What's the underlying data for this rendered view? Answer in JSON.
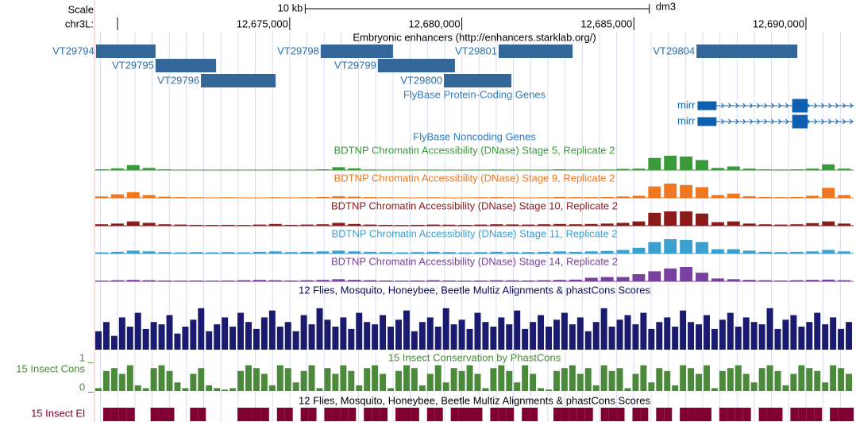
{
  "scale": {
    "label": "Scale",
    "bar_label": "10 kb",
    "assembly": "dm3",
    "start": 12675450,
    "end": 12685450
  },
  "ruler": {
    "chrom": "chr3L:",
    "xlim": [
      12669350,
      12691385
    ],
    "ticks": [
      {
        "value": 12675000,
        "label": "12,675,000"
      },
      {
        "value": 12680000,
        "label": "12,680,000"
      },
      {
        "value": 12685000,
        "label": "12,685,000"
      },
      {
        "value": 12690000,
        "label": "12,690,000"
      }
    ]
  },
  "enhancers": {
    "title": "Embryonic enhancers (http://enhancers.starklab.org/)",
    "color": "#336699",
    "features": [
      {
        "label": "VT29794",
        "start": 12669370,
        "end": 12671100,
        "row": 0
      },
      {
        "label": "VT29795",
        "start": 12671100,
        "end": 12672860,
        "row": 1
      },
      {
        "label": "VT29796",
        "start": 12672420,
        "end": 12674590,
        "row": 2
      },
      {
        "label": "VT29798",
        "start": 12675900,
        "end": 12678000,
        "row": 0
      },
      {
        "label": "VT29799",
        "start": 12677560,
        "end": 12679800,
        "row": 1
      },
      {
        "label": "VT29800",
        "start": 12679480,
        "end": 12681440,
        "row": 2
      },
      {
        "label": "VT29801",
        "start": 12681070,
        "end": 12683220,
        "row": 0
      },
      {
        "label": "VT29804",
        "start": 12686820,
        "end": 12689750,
        "row": 0
      }
    ]
  },
  "genes": {
    "title": "FlyBase Protein-Coding Genes",
    "color": "#0f5fb0",
    "features": [
      {
        "label": "mirr",
        "start": 12686850,
        "end": 12691385,
        "exons": [
          [
            12686850,
            12687400
          ],
          [
            12689600,
            12690050
          ]
        ]
      },
      {
        "label": "mirr",
        "start": 12686850,
        "end": 12691385,
        "exons": [
          [
            12686850,
            12687400
          ],
          [
            12689600,
            12690050
          ]
        ]
      }
    ]
  },
  "noncoding": {
    "title": "FlyBase Noncoding Genes"
  },
  "dnase": [
    {
      "title": "BDTNP Chromatin Accessibility (DNase) Stage 5, Replicate 2",
      "color": "#3a9a3a",
      "values": [
        0.05,
        0.12,
        0.35,
        0.15,
        0.05,
        0.03,
        0.02,
        0.02,
        0.03,
        0.02,
        0.02,
        0.03,
        0.02,
        0.03,
        0.05,
        0.2,
        0.12,
        0.04,
        0.03,
        0.02,
        0.02,
        0.03,
        0.02,
        0.02,
        0.03,
        0.04,
        0.03,
        0.02,
        0.03,
        0.05,
        0.04,
        0.03,
        0.04,
        0.08,
        0.1,
        0.85,
        1,
        0.95,
        0.7,
        0.15,
        0.25,
        0.1,
        0.05,
        0.04,
        0.05,
        0.1,
        0.4,
        0.1
      ]
    },
    {
      "title": "BDTNP Chromatin Accessibility (DNase) Stage 9, Replicate 2",
      "color": "#f07820",
      "values": [
        0.1,
        0.25,
        0.4,
        0.2,
        0.08,
        0.05,
        0.04,
        0.03,
        0.04,
        0.03,
        0.03,
        0.04,
        0.03,
        0.04,
        0.06,
        0.12,
        0.08,
        0.05,
        0.04,
        0.03,
        0.03,
        0.04,
        0.03,
        0.03,
        0.04,
        0.05,
        0.04,
        0.03,
        0.04,
        0.06,
        0.05,
        0.05,
        0.06,
        0.1,
        0.15,
        0.8,
        1,
        0.9,
        0.75,
        0.2,
        0.3,
        0.12,
        0.06,
        0.05,
        0.06,
        0.15,
        0.7,
        0.2
      ]
    },
    {
      "title": "BDTNP Chromatin Accessibility (DNase) Stage 10, Replicate 2",
      "color": "#8b1a1a",
      "values": [
        0.1,
        0.15,
        0.3,
        0.2,
        0.1,
        0.08,
        0.06,
        0.05,
        0.06,
        0.05,
        0.08,
        0.12,
        0.06,
        0.08,
        0.1,
        0.2,
        0.12,
        0.08,
        0.06,
        0.05,
        0.06,
        0.08,
        0.07,
        0.06,
        0.08,
        0.1,
        0.09,
        0.08,
        0.1,
        0.12,
        0.1,
        0.12,
        0.15,
        0.2,
        0.3,
        0.9,
        1,
        1,
        0.85,
        0.25,
        0.3,
        0.15,
        0.1,
        0.08,
        0.1,
        0.18,
        0.3,
        0.15
      ]
    },
    {
      "title": "BDTNP Chromatin Accessibility (DNase) Stage 11, Replicate 2",
      "color": "#3aa0d0",
      "values": [
        0.08,
        0.12,
        0.2,
        0.15,
        0.1,
        0.08,
        0.1,
        0.08,
        0.1,
        0.08,
        0.12,
        0.15,
        0.1,
        0.12,
        0.15,
        0.2,
        0.15,
        0.12,
        0.1,
        0.08,
        0.1,
        0.12,
        0.1,
        0.08,
        0.1,
        0.12,
        0.1,
        0.1,
        0.12,
        0.15,
        0.12,
        0.15,
        0.18,
        0.25,
        0.4,
        0.8,
        1,
        0.95,
        0.8,
        0.3,
        0.3,
        0.2,
        0.12,
        0.1,
        0.12,
        0.15,
        0.25,
        0.15
      ]
    },
    {
      "title": "BDTNP Chromatin Accessibility (DNase) Stage 14, Replicate 2",
      "color": "#7a40a0",
      "values": [
        0.05,
        0.08,
        0.1,
        0.08,
        0.06,
        0.05,
        0.06,
        0.05,
        0.06,
        0.08,
        0.1,
        0.08,
        0.06,
        0.08,
        0.1,
        0.15,
        0.1,
        0.08,
        0.06,
        0.05,
        0.06,
        0.08,
        0.06,
        0.05,
        0.06,
        0.08,
        0.07,
        0.06,
        0.08,
        0.1,
        0.12,
        0.25,
        0.3,
        0.3,
        0.5,
        0.7,
        0.9,
        1,
        0.6,
        0.2,
        0.15,
        0.1,
        0.08,
        0.06,
        0.08,
        0.1,
        0.12,
        0.08
      ]
    }
  ],
  "multiz": {
    "title": "12 Flies, Mosquito, Honeybee, Beetle Multiz Alignments & phastCons Scores",
    "color": "#1a1a6e",
    "values": [
      0.4,
      0.6,
      0.3,
      0.7,
      0.5,
      0.8,
      0.45,
      0.6,
      0.55,
      0.75,
      0.35,
      0.5,
      0.65,
      0.9,
      0.4,
      0.55,
      0.7,
      0.5,
      0.8,
      0.6,
      0.45,
      0.7,
      0.85,
      0.5,
      0.6,
      0.4,
      0.75,
      0.55,
      0.9,
      0.65,
      0.5,
      0.7,
      0.45,
      0.8,
      0.6,
      0.55,
      0.75,
      0.5,
      0.65,
      0.85,
      0.4,
      0.6,
      0.7,
      0.5,
      0.9,
      0.55,
      0.65,
      0.45,
      0.8,
      0.6,
      0.5,
      0.7,
      0.55,
      0.85,
      0.45,
      0.6,
      0.75,
      0.5,
      0.65,
      0.8,
      0.55,
      0.7,
      0.4,
      0.6,
      0.9,
      0.5,
      0.65,
      0.75,
      0.55,
      0.8,
      0.45,
      0.6,
      0.7,
      0.5,
      0.85,
      0.6,
      0.55,
      0.75,
      0.45,
      0.65,
      0.8,
      0.5,
      0.7,
      0.6,
      0.55,
      0.9,
      0.45,
      0.65,
      0.75,
      0.5,
      0.6,
      0.8,
      0.55,
      0.7,
      0.45,
      0.6
    ]
  },
  "phastcons": {
    "title": "15 Insect Conservation by PhastCons",
    "side_label": "15 Insect Cons",
    "max_label": "1 _",
    "min_label": "0 _",
    "color": "#4a8a3a",
    "values": [
      0.1,
      0.7,
      0.8,
      0.6,
      0.9,
      0.2,
      0.1,
      0.8,
      0.9,
      0.7,
      0.3,
      0.1,
      0.6,
      0.8,
      0.2,
      0.1,
      0.05,
      0.1,
      0.7,
      0.9,
      0.8,
      0.6,
      0.2,
      0.9,
      0.8,
      0.3,
      0.7,
      0.9,
      0.1,
      0.8,
      0.6,
      0.9,
      0.7,
      0.2,
      0.8,
      0.9,
      0.6,
      0.1,
      0.7,
      0.9,
      0.8,
      0.2,
      0.6,
      0.9,
      0.3,
      0.8,
      0.7,
      0.9,
      0.6,
      0.1,
      0.8,
      0.9,
      0.7,
      0.3,
      0.9,
      0.6,
      0.1,
      0.05,
      0.7,
      0.8,
      0.9,
      0.6,
      0.8,
      0.2,
      0.9,
      0.7,
      0.8,
      0.1,
      0.6,
      0.9,
      0.3,
      0.8,
      0.7,
      0.2,
      0.9,
      0.8,
      0.6,
      0.9,
      0.1,
      0.7,
      0.8,
      0.9,
      0.6,
      0.3,
      0.8,
      0.9,
      0.7,
      0.2,
      0.6,
      0.9,
      0.8,
      0.7,
      0.3,
      0.9,
      0.8,
      0.6
    ]
  },
  "elements": {
    "title": "12 Flies, Mosquito, Honeybee, Beetle Multiz Alignments & phastCons Scores",
    "side_label": "15 Insect El",
    "color": "#800033",
    "values": [
      0,
      1,
      1,
      1,
      1,
      0,
      0,
      1,
      1,
      1,
      0,
      0,
      1,
      1,
      0,
      0,
      0,
      0,
      1,
      1,
      1,
      1,
      0,
      1,
      1,
      0,
      1,
      1,
      0,
      1,
      1,
      1,
      1,
      0,
      1,
      1,
      1,
      0,
      1,
      1,
      1,
      0,
      1,
      1,
      0,
      1,
      1,
      1,
      1,
      0,
      1,
      1,
      1,
      0,
      1,
      1,
      0,
      0,
      1,
      1,
      1,
      1,
      1,
      0,
      1,
      1,
      1,
      0,
      1,
      1,
      0,
      1,
      1,
      0,
      1,
      1,
      1,
      1,
      0,
      1,
      1,
      1,
      1,
      0,
      1,
      1,
      1,
      0,
      1,
      1,
      1,
      1,
      0,
      1,
      1,
      1
    ]
  }
}
